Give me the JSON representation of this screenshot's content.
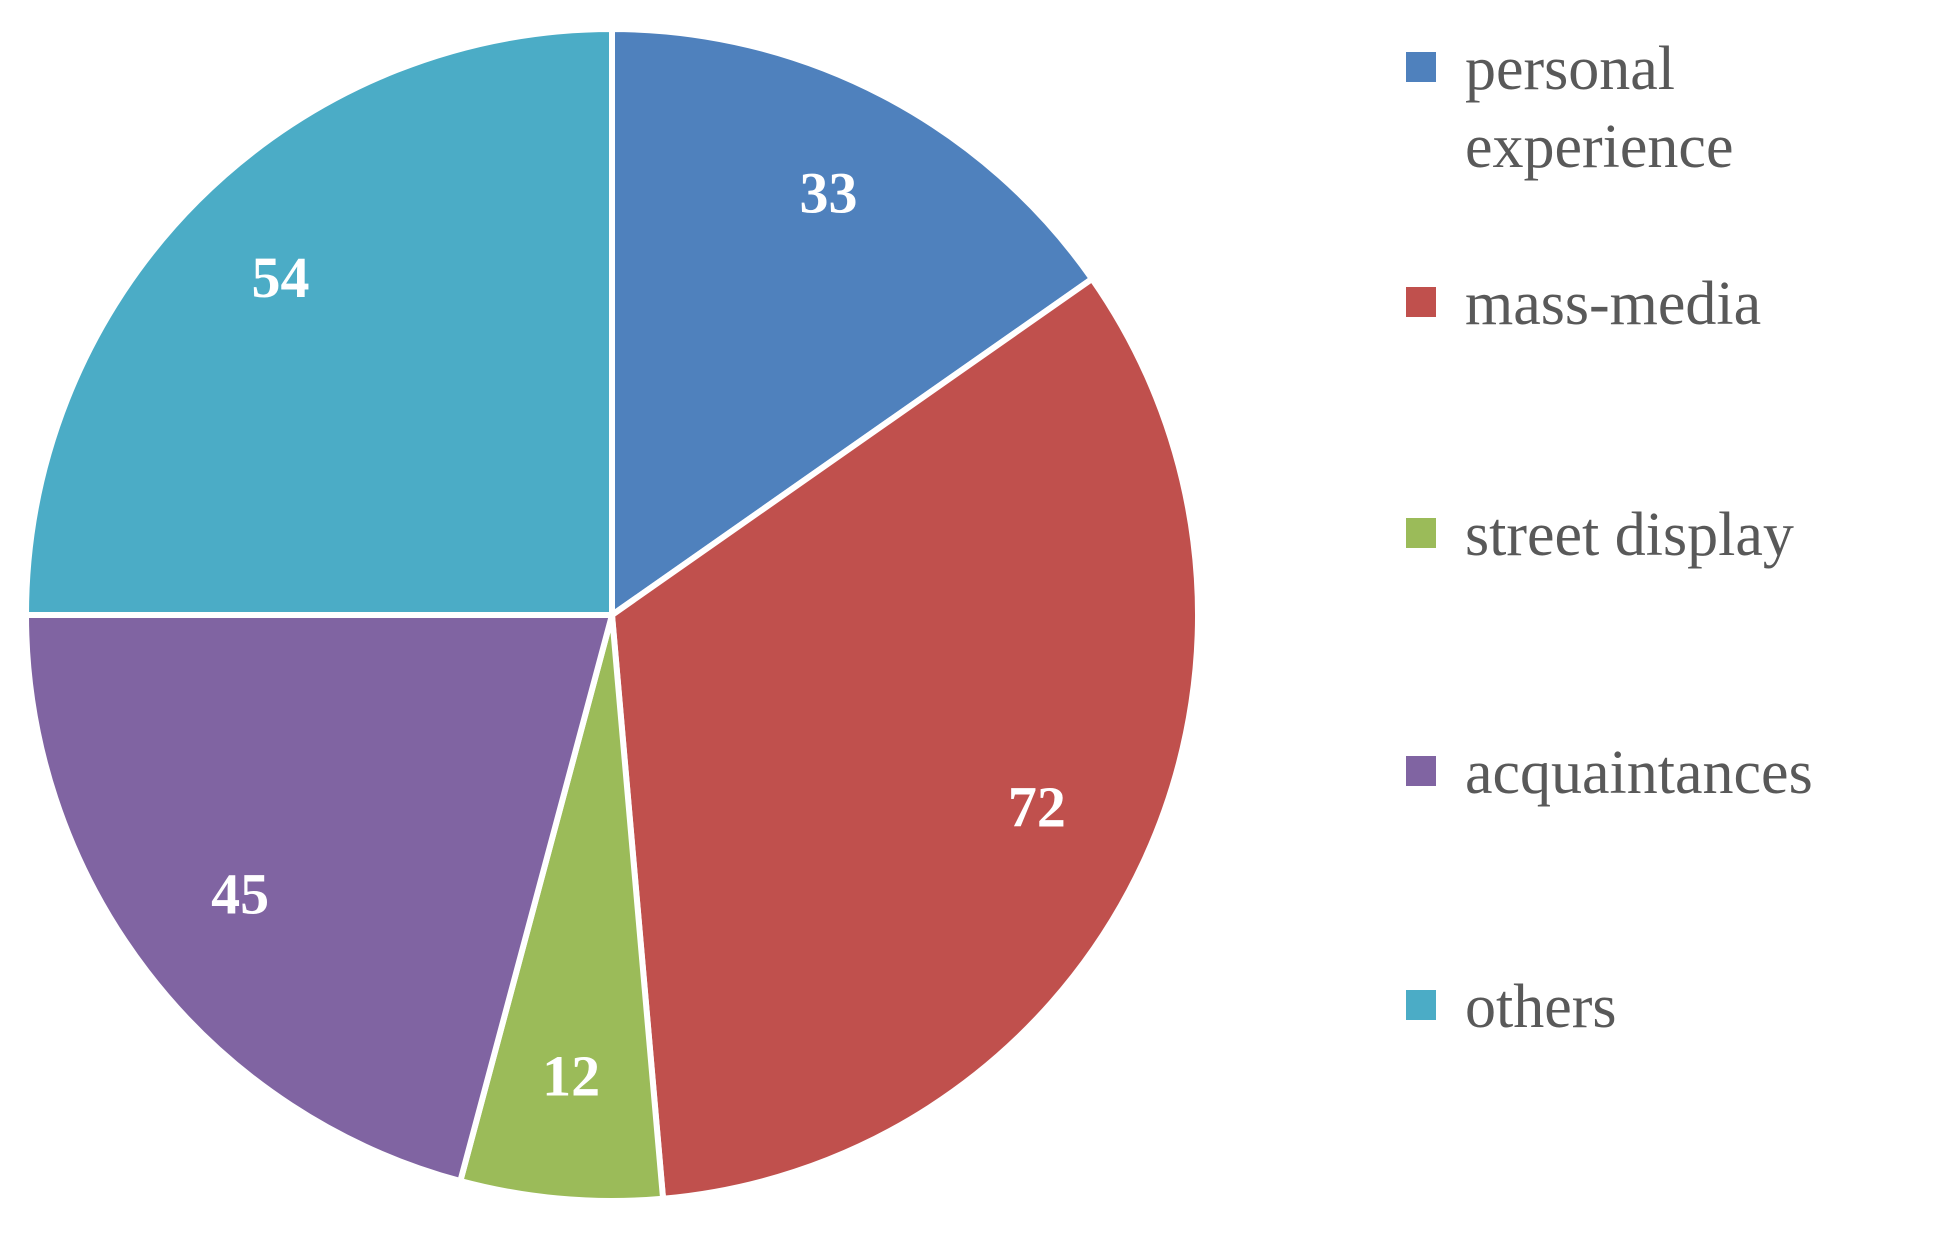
{
  "chart_data": {
    "type": "pie",
    "categories": [
      "personal experience",
      "mass-media",
      "street display",
      "acquaintances",
      "others"
    ],
    "values": [
      33,
      72,
      12,
      45,
      54
    ],
    "colors": [
      "#4f81bd",
      "#c0504d",
      "#9bbb59",
      "#8064a2",
      "#4bacc6"
    ]
  }
}
